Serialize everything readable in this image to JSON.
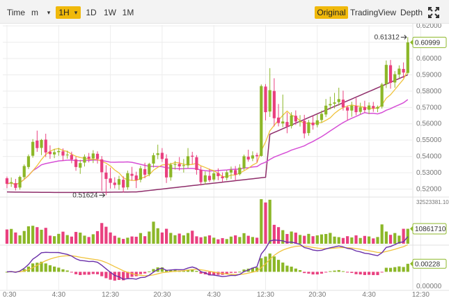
{
  "toolbar": {
    "time_label": "Time",
    "minute_label": "m",
    "minute_caret": "▾",
    "hour_label": "1H",
    "hour_caret": "▾",
    "day_label": "1D",
    "week_label": "1W",
    "month_label": "1M",
    "original_label": "Original",
    "tradingview_label": "TradingView",
    "depth_label": "Depth",
    "accent_color": "#f0b90b"
  },
  "chart_data": {
    "type": "candlestick",
    "price_axis": {
      "ticks": [
        "0.62000",
        "0.61000",
        "0.60000",
        "0.59000",
        "0.58000",
        "0.57000",
        "0.56000",
        "0.55000",
        "0.54000",
        "0.53000",
        "0.52000"
      ],
      "range": [
        0.5155,
        0.6205
      ]
    },
    "volume_axis": {
      "top_label": "32523381.10",
      "range": [
        0,
        32523381.1
      ]
    },
    "macd_axis": {
      "bottom_label": "0.00000",
      "range": [
        -0.004,
        0.007
      ]
    },
    "time_ticks": [
      "0:30",
      "4:30",
      "12:30",
      "20:30",
      "4:30",
      "12:30",
      "20:30",
      "4:30",
      "12:30"
    ],
    "time_tick_index": [
      0,
      12,
      24,
      36,
      48,
      60,
      72,
      84,
      96
    ],
    "last_price_tag": "0.60999",
    "last_volume_tag": "10861710",
    "last_macd_tag": "0.00228",
    "high_marker": "0.61312",
    "low_marker": "0.51624",
    "up_color": "#8cb728",
    "down_color": "#e9407f",
    "ma_short_color": "#f0c33c",
    "ma_mid_color": "#d64fd6",
    "ma_long_color": "#8e2d6a",
    "ohlc": [
      [
        0.5266,
        0.5276,
        0.5205,
        0.5232
      ],
      [
        0.5235,
        0.5271,
        0.5213,
        0.5242
      ],
      [
        0.5236,
        0.5262,
        0.5191,
        0.5207
      ],
      [
        0.5209,
        0.5282,
        0.5196,
        0.5274
      ],
      [
        0.5273,
        0.5351,
        0.5262,
        0.5341
      ],
      [
        0.5335,
        0.5412,
        0.5322,
        0.5401
      ],
      [
        0.5404,
        0.5506,
        0.5392,
        0.5489
      ],
      [
        0.5497,
        0.5558,
        0.5428,
        0.5451
      ],
      [
        0.5452,
        0.5507,
        0.5408,
        0.5501
      ],
      [
        0.5503,
        0.5539,
        0.5396,
        0.5424
      ],
      [
        0.5429,
        0.5468,
        0.5385,
        0.5414
      ],
      [
        0.5412,
        0.5446,
        0.5389,
        0.5426
      ],
      [
        0.5426,
        0.5452,
        0.5404,
        0.5433
      ],
      [
        0.5431,
        0.5449,
        0.5373,
        0.5405
      ],
      [
        0.5408,
        0.5435,
        0.5386,
        0.5411
      ],
      [
        0.5409,
        0.5429,
        0.5358,
        0.5381
      ],
      [
        0.5382,
        0.5399,
        0.5312,
        0.5335
      ],
      [
        0.5331,
        0.5379,
        0.5293,
        0.5359
      ],
      [
        0.5362,
        0.5412,
        0.5338,
        0.5398
      ],
      [
        0.5398,
        0.5421,
        0.5363,
        0.5386
      ],
      [
        0.5388,
        0.5438,
        0.5359,
        0.5418
      ],
      [
        0.5416,
        0.5431,
        0.5356,
        0.5384
      ],
      [
        0.5382,
        0.5402,
        0.5188,
        0.5303
      ],
      [
        0.5301,
        0.5346,
        0.5162,
        0.5262
      ],
      [
        0.5265,
        0.5331,
        0.5203,
        0.5238
      ],
      [
        0.5239,
        0.5272,
        0.5204,
        0.5225
      ],
      [
        0.5226,
        0.5281,
        0.5195,
        0.5261
      ],
      [
        0.5257,
        0.5278,
        0.5179,
        0.5209
      ],
      [
        0.5211,
        0.5313,
        0.5196,
        0.5297
      ],
      [
        0.5293,
        0.5336,
        0.5251,
        0.5281
      ],
      [
        0.5283,
        0.5306,
        0.5206,
        0.5255
      ],
      [
        0.5257,
        0.5342,
        0.5241,
        0.5327
      ],
      [
        0.5322,
        0.5361,
        0.5266,
        0.5288
      ],
      [
        0.5291,
        0.5361,
        0.5278,
        0.5354
      ],
      [
        0.5356,
        0.5421,
        0.5332,
        0.5407
      ],
      [
        0.5409,
        0.5472,
        0.5383,
        0.5419
      ],
      [
        0.5422,
        0.5451,
        0.5366,
        0.5384
      ],
      [
        0.5387,
        0.5413,
        0.5237,
        0.5271
      ],
      [
        0.5272,
        0.5361,
        0.5251,
        0.5349
      ],
      [
        0.5348,
        0.5372,
        0.5319,
        0.5353
      ],
      [
        0.5354,
        0.5396,
        0.5313,
        0.5339
      ],
      [
        0.5341,
        0.5384,
        0.5301,
        0.5346
      ],
      [
        0.5345,
        0.5451,
        0.5327,
        0.5401
      ],
      [
        0.5404,
        0.5428,
        0.5353,
        0.5398
      ],
      [
        0.5395,
        0.5408,
        0.5288,
        0.5317
      ],
      [
        0.5318,
        0.5339,
        0.5222,
        0.5242
      ],
      [
        0.5245,
        0.5308,
        0.5229,
        0.5284
      ],
      [
        0.5281,
        0.5324,
        0.5242,
        0.5254
      ],
      [
        0.5258,
        0.5311,
        0.5246,
        0.5296
      ],
      [
        0.5298,
        0.5327,
        0.5254,
        0.5279
      ],
      [
        0.5276,
        0.5302,
        0.5244,
        0.5266
      ],
      [
        0.5268,
        0.5316,
        0.5253,
        0.5303
      ],
      [
        0.5301,
        0.5338,
        0.5262,
        0.5318
      ],
      [
        0.5316,
        0.5341,
        0.5251,
        0.5288
      ],
      [
        0.5291,
        0.5352,
        0.5283,
        0.5331
      ],
      [
        0.5328,
        0.5411,
        0.5316,
        0.5401
      ],
      [
        0.5398,
        0.5441,
        0.5368,
        0.5381
      ],
      [
        0.5387,
        0.5431,
        0.5371,
        0.5406
      ],
      [
        0.5408,
        0.5422,
        0.5363,
        0.5401
      ],
      [
        0.5403,
        0.5841,
        0.5398,
        0.5831
      ],
      [
        0.5828,
        0.5843,
        0.5621,
        0.5671
      ],
      [
        0.5675,
        0.5941,
        0.5642,
        0.5806
      ],
      [
        0.5801,
        0.5879,
        0.5584,
        0.5634
      ],
      [
        0.5638,
        0.5721,
        0.5584,
        0.5605
      ],
      [
        0.5602,
        0.5779,
        0.5579,
        0.5614
      ],
      [
        0.5611,
        0.5669,
        0.5542,
        0.5583
      ],
      [
        0.5586,
        0.5671,
        0.5571,
        0.5651
      ],
      [
        0.5649,
        0.5682,
        0.5593,
        0.5614
      ],
      [
        0.5614,
        0.5653,
        0.5583,
        0.5615
      ],
      [
        0.5618,
        0.5655,
        0.5511,
        0.5541
      ],
      [
        0.5543,
        0.5624,
        0.5527,
        0.5609
      ],
      [
        0.5607,
        0.5648,
        0.5564,
        0.5591
      ],
      [
        0.5593,
        0.5657,
        0.5578,
        0.5621
      ],
      [
        0.5623,
        0.5681,
        0.5607,
        0.5661
      ],
      [
        0.5657,
        0.5752,
        0.5641,
        0.5711
      ],
      [
        0.5713,
        0.5766,
        0.5688,
        0.5721
      ],
      [
        0.5723,
        0.5789,
        0.5694,
        0.5731
      ],
      [
        0.5733,
        0.5821,
        0.5711,
        0.5751
      ],
      [
        0.5748,
        0.5803,
        0.5681,
        0.5701
      ],
      [
        0.5701,
        0.5712,
        0.5621,
        0.5681
      ],
      [
        0.5681,
        0.5735,
        0.5643,
        0.5711
      ],
      [
        0.5709,
        0.5758,
        0.5652,
        0.5671
      ],
      [
        0.5673,
        0.5729,
        0.5658,
        0.5701
      ],
      [
        0.5703,
        0.5741,
        0.5668,
        0.5684
      ],
      [
        0.5686,
        0.5731,
        0.5659,
        0.5712
      ],
      [
        0.5709,
        0.5734,
        0.5673,
        0.5695
      ],
      [
        0.5693,
        0.5712,
        0.5671,
        0.5703
      ],
      [
        0.5705,
        0.5851,
        0.5693,
        0.5841
      ],
      [
        0.5843,
        0.5988,
        0.5819,
        0.5961
      ],
      [
        0.5959,
        0.5991,
        0.5815,
        0.5851
      ],
      [
        0.5853,
        0.5923,
        0.5821,
        0.5904
      ],
      [
        0.5902,
        0.5958,
        0.5879,
        0.5938
      ],
      [
        0.5936,
        0.5976,
        0.5881,
        0.5914
      ],
      [
        0.5912,
        0.6131,
        0.5903,
        0.6099
      ]
    ],
    "volumes": [
      10400000.0,
      10800000.0,
      8200000.0,
      6100000.0,
      9300000.0,
      12700000.0,
      13100000.0,
      12100000.0,
      10200000.0,
      11600000.0,
      5900000.0,
      5500000.0,
      7200000.0,
      8800000.0,
      6300000.0,
      5200000.0,
      8600000.0,
      8100000.0,
      5900000.0,
      4900000.0,
      6900000.0,
      9200000.0,
      15100000.0,
      12400000.0,
      8200000.0,
      5800000.0,
      4400000.0,
      3500000.0,
      4400000.0,
      5300000.0,
      5100000.0,
      7800000.0,
      5500000.0,
      8900000.0,
      16100000.0,
      11300000.0,
      8200000.0,
      10900000.0,
      7900000.0,
      6200000.0,
      7400000.0,
      6100000.0,
      7800000.0,
      9500000.0,
      5400000.0,
      4700000.0,
      5300000.0,
      6100000.0,
      4400000.0,
      3200000.0,
      4100000.0,
      3400000.0,
      5200000.0,
      6100000.0,
      4900000.0,
      7700000.0,
      5800000.0,
      4900000.0,
      4400000.0,
      32500000.0,
      30100000.0,
      32100000.0,
      13800000.0,
      12100000.0,
      9900000.0,
      7100000.0,
      8900000.0,
      8100000.0,
      6400000.0,
      5800000.0,
      7200000.0,
      5500000.0,
      6100000.0,
      6800000.0,
      7100000.0,
      7900000.0,
      5200000.0,
      4800000.0,
      4200000.0,
      5500000.0,
      4600000.0,
      6100000.0,
      4200000.0,
      5700000.0,
      5300000.0,
      3900000.0,
      4900000.0,
      14100000.0,
      8900000.0,
      6500000.0,
      7800000.0,
      5900000.0,
      10900000.0,
      10900000.0
    ]
  }
}
